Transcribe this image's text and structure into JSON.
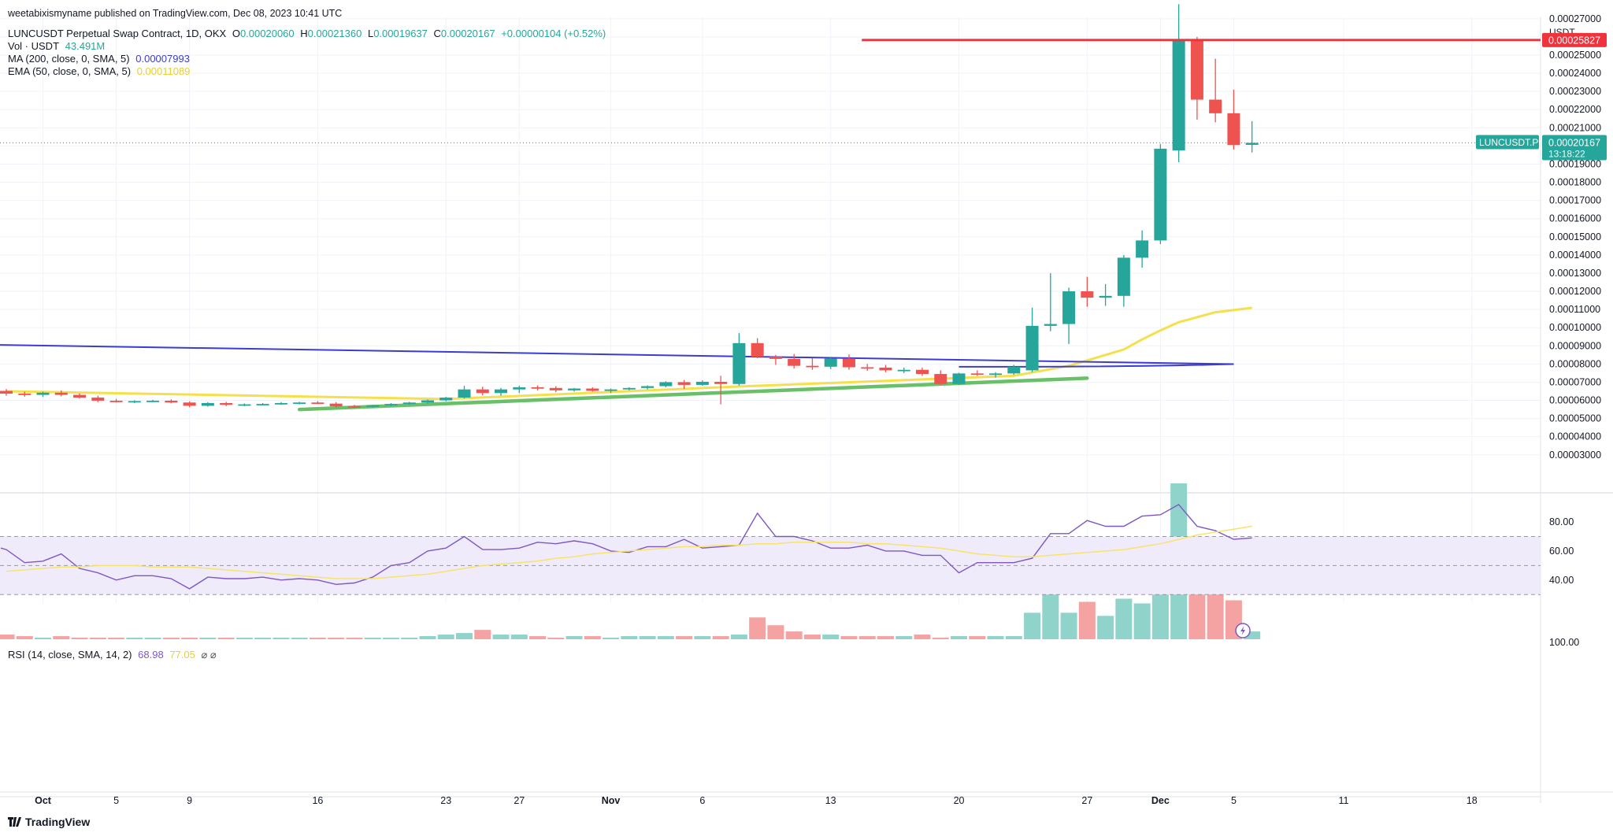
{
  "header": {
    "published": "weetabixismyname published on TradingView.com, Dec 08, 2023 10:41 UTC",
    "symbol_line": "LUNCUSDT Perpetual Swap Contract, 1D, OKX",
    "ohlc": [
      {
        "k": "O",
        "v": "0.00020060"
      },
      {
        "k": "H",
        "v": "0.00021360"
      },
      {
        "k": "L",
        "v": "0.00019637"
      },
      {
        "k": "C",
        "v": "0.00020167"
      }
    ],
    "change": "+0.00000104 (+0.52%)",
    "vol_label": "Vol · USDT",
    "vol_value": "43.491M",
    "ma_label": "MA (200, close, 0, SMA, 5)",
    "ma_value": "0.00007993",
    "ema_label": "EMA (50, close, 0, SMA, 5)",
    "ema_value": "0.00011089"
  },
  "rsi_header": {
    "label": "RSI (14, close, SMA, 14, 2)",
    "value1": "68.98",
    "value2": "77.05",
    "glyphs": "⌀ ⌀"
  },
  "price_axis": {
    "currency": "USDT",
    "ticks": [
      "0.00027000",
      "0.00025000",
      "0.00024000",
      "0.00023000",
      "0.00022000",
      "0.00021000",
      "0.00019000",
      "0.00018000",
      "0.00017000",
      "0.00016000",
      "0.00015000",
      "0.00014000",
      "0.00013000",
      "0.00012000",
      "0.00011000",
      "0.00010000",
      "0.00009000",
      "0.00008000",
      "0.00007000",
      "0.00006000",
      "0.00005000",
      "0.00004000",
      "0.00003000"
    ],
    "resistance_label": "0.00025827",
    "symbol_tag": "LUNCUSDT.P",
    "last_price_label": "0.00020167",
    "countdown": "13:18:22"
  },
  "rsi_axis": {
    "ticks": [
      "100.00",
      "80.00",
      "60.00",
      "40.00"
    ]
  },
  "time_axis": {
    "labels": [
      {
        "i": 2,
        "t": "Oct",
        "bold": true
      },
      {
        "i": 6,
        "t": "5"
      },
      {
        "i": 10,
        "t": "9"
      },
      {
        "i": 17,
        "t": "16"
      },
      {
        "i": 24,
        "t": "23"
      },
      {
        "i": 28,
        "t": "27"
      },
      {
        "i": 33,
        "t": "Nov",
        "bold": true
      },
      {
        "i": 38,
        "t": "6"
      },
      {
        "i": 45,
        "t": "13"
      },
      {
        "i": 52,
        "t": "20"
      },
      {
        "i": 59,
        "t": "27"
      },
      {
        "i": 63,
        "t": "Dec",
        "bold": true
      },
      {
        "i": 67,
        "t": "5"
      },
      {
        "i": 73,
        "t": "11"
      },
      {
        "i": 80,
        "t": "18"
      }
    ]
  },
  "colors": {
    "up": "#26a69a",
    "down": "#ef5350",
    "vol_up": "#8fd3cb",
    "vol_down": "#f5a3a2",
    "ma": "#3c3ccf",
    "ema": "#f5e04c",
    "trend": "#6abf69",
    "resistance": "#f0323c",
    "rsi": "#7e57c2",
    "rsi_ma": "#f7e36a",
    "rsi_band": "#efebfa"
  },
  "logo": "TradingView",
  "chart_data": {
    "type": "candlestick",
    "title": "LUNCUSDT Perpetual Swap Contract, 1D, OKX",
    "x_start": "2023-09-28",
    "interval": "1D",
    "ylim": [
      2e-05,
      0.000275
    ],
    "candles": [
      [
        6.52e-05,
        6.62e-05,
        6.25e-05,
        6.37e-05
      ],
      [
        6.37e-05,
        6.48e-05,
        6.2e-05,
        6.3e-05
      ],
      [
        6.3e-05,
        6.48e-05,
        6.18e-05,
        6.42e-05
      ],
      [
        6.42e-05,
        6.55e-05,
        6.22e-05,
        6.3e-05
      ],
      [
        6.3e-05,
        6.38e-05,
        6.1e-05,
        6.15e-05
      ],
      [
        6.15e-05,
        6.25e-05,
        5.9e-05,
        5.98e-05
      ],
      [
        5.98e-05,
        6.08e-05,
        5.88e-05,
        5.92e-05
      ],
      [
        5.92e-05,
        6e-05,
        5.85e-05,
        5.96e-05
      ],
      [
        5.96e-05,
        6.03e-05,
        5.9e-05,
        5.98e-05
      ],
      [
        5.98e-05,
        6.05e-05,
        5.83e-05,
        5.88e-05
      ],
      [
        5.88e-05,
        5.95e-05,
        5.62e-05,
        5.7e-05
      ],
      [
        5.7e-05,
        5.9e-05,
        5.65e-05,
        5.85e-05
      ],
      [
        5.85e-05,
        5.92e-05,
        5.68e-05,
        5.75e-05
      ],
      [
        5.75e-05,
        5.83e-05,
        5.68e-05,
        5.78e-05
      ],
      [
        5.78e-05,
        5.85e-05,
        5.72e-05,
        5.8e-05
      ],
      [
        5.8e-05,
        5.9e-05,
        5.75e-05,
        5.85e-05
      ],
      [
        5.85e-05,
        5.92e-05,
        5.78e-05,
        5.88e-05
      ],
      [
        5.88e-05,
        5.96e-05,
        5.8e-05,
        5.82e-05
      ],
      [
        5.82e-05,
        5.9e-05,
        5.6e-05,
        5.67e-05
      ],
      [
        5.67e-05,
        5.75e-05,
        5.58e-05,
        5.64e-05
      ],
      [
        5.64e-05,
        5.75e-05,
        5.6e-05,
        5.73e-05
      ],
      [
        5.73e-05,
        5.85e-05,
        5.68e-05,
        5.8e-05
      ],
      [
        5.8e-05,
        5.92e-05,
        5.75e-05,
        5.88e-05
      ],
      [
        5.88e-05,
        6.05e-05,
        5.82e-05,
        6e-05
      ],
      [
        6e-05,
        6.2e-05,
        5.95e-05,
        6.15e-05
      ],
      [
        6.15e-05,
        6.8e-05,
        6.1e-05,
        6.6e-05
      ],
      [
        6.6e-05,
        6.75e-05,
        6.28e-05,
        6.4e-05
      ],
      [
        6.4e-05,
        6.68e-05,
        6.25e-05,
        6.6e-05
      ],
      [
        6.6e-05,
        6.8e-05,
        6.4e-05,
        6.72e-05
      ],
      [
        6.72e-05,
        6.82e-05,
        6.55e-05,
        6.68e-05
      ],
      [
        6.68e-05,
        6.78e-05,
        6.45e-05,
        6.55e-05
      ],
      [
        6.55e-05,
        6.68e-05,
        6.48e-05,
        6.65e-05
      ],
      [
        6.65e-05,
        6.72e-05,
        6.48e-05,
        6.52e-05
      ],
      [
        6.52e-05,
        6.65e-05,
        6.4e-05,
        6.6e-05
      ],
      [
        6.6e-05,
        6.72e-05,
        6.55e-05,
        6.68e-05
      ],
      [
        6.68e-05,
        6.82e-05,
        6.6e-05,
        6.78e-05
      ],
      [
        6.78e-05,
        7.05e-05,
        6.72e-05,
        7e-05
      ],
      [
        7e-05,
        7.12e-05,
        6.62e-05,
        6.85e-05
      ],
      [
        6.85e-05,
        7.1e-05,
        6.8e-05,
        7.02e-05
      ],
      [
        7.02e-05,
        7.35e-05,
        5.78e-05,
        6.9e-05
      ],
      [
        6.9e-05,
        9.7e-05,
        6.8e-05,
        9.15e-05
      ],
      [
        9.15e-05,
        9.42e-05,
        8.32e-05,
        8.4e-05
      ],
      [
        8.4e-05,
        8.5e-05,
        7.95e-05,
        8.28e-05
      ],
      [
        8.28e-05,
        8.55e-05,
        7.75e-05,
        7.9e-05
      ],
      [
        7.9e-05,
        8.32e-05,
        7.68e-05,
        7.85e-05
      ],
      [
        7.85e-05,
        8.4e-05,
        7.72e-05,
        8.3e-05
      ],
      [
        8.3e-05,
        8.52e-05,
        7.68e-05,
        7.82e-05
      ],
      [
        7.82e-05,
        8e-05,
        7.62e-05,
        7.8e-05
      ],
      [
        7.8e-05,
        7.95e-05,
        7.55e-05,
        7.65e-05
      ],
      [
        7.65e-05,
        7.8e-05,
        7.5e-05,
        7.68e-05
      ],
      [
        7.68e-05,
        7.8e-05,
        7.35e-05,
        7.45e-05
      ],
      [
        7.45e-05,
        7.65e-05,
        6.85e-05,
        6.9e-05
      ],
      [
        6.9e-05,
        7.52e-05,
        6.85e-05,
        7.48e-05
      ],
      [
        7.48e-05,
        7.65e-05,
        7.35e-05,
        7.42e-05
      ],
      [
        7.42e-05,
        7.55e-05,
        7.25e-05,
        7.48e-05
      ],
      [
        7.48e-05,
        7.95e-05,
        7.4e-05,
        7.85e-05
      ],
      [
        7.65e-05,
        0.000111,
        7.55e-05,
        0.000101
      ],
      [
        0.000101,
        0.00013,
        9.8e-05,
        0.000102
      ],
      [
        0.000102,
        0.000122,
        9.1e-05,
        0.00012
      ],
      [
        0.00012,
        0.000128,
        0.0001115,
        0.0001165
      ],
      [
        0.0001165,
        0.000124,
        0.000112,
        0.0001175
      ],
      [
        0.0001175,
        0.00014,
        0.0001115,
        0.0001385
      ],
      [
        0.0001385,
        0.0001535,
        0.000133,
        0.000148
      ],
      [
        0.000148,
        0.000201,
        0.000146,
        0.0001985
      ],
      [
        0.0001975,
        0.000278,
        0.000191,
        0.0002582
      ],
      [
        0.0002582,
        0.00026,
        0.0002145,
        0.0002255
      ],
      [
        0.0002255,
        0.000248,
        0.000213,
        0.000218
      ],
      [
        0.000218,
        0.000231,
        0.000198,
        0.0002005
      ],
      [
        0.0002006,
        0.0002136,
        0.0001964,
        0.0002017
      ]
    ],
    "volume": [
      3,
      2,
      1,
      2,
      1,
      1,
      1,
      1,
      1,
      1,
      1,
      1,
      1,
      1,
      1,
      1,
      1,
      1,
      1,
      1,
      1,
      1,
      1,
      2,
      3,
      4,
      6,
      3,
      3,
      2,
      1,
      2,
      2,
      1,
      2,
      2,
      2,
      2,
      2,
      2,
      3,
      14,
      9,
      5,
      3,
      3,
      2,
      2,
      2,
      2,
      3,
      1,
      2,
      2,
      2,
      2,
      17,
      42,
      17,
      24,
      15,
      26,
      23,
      55,
      100,
      56,
      42,
      25,
      5
    ],
    "ma200": [
      [
        0,
        9.05e-05
      ],
      [
        67,
        7.993e-05
      ]
    ],
    "ema50": [
      [
        0,
        6.5e-05
      ],
      [
        24,
        6.07e-05
      ],
      [
        39,
        6.72e-05
      ],
      [
        55,
        7.35e-05
      ],
      [
        58,
        7.9e-05
      ],
      [
        61,
        8.8e-05
      ],
      [
        62,
        9.35e-05
      ],
      [
        63,
        9.85e-05
      ],
      [
        64,
        0.000103
      ],
      [
        66,
        0.0001085
      ],
      [
        68,
        0.0001109
      ]
    ],
    "trendline": [
      [
        16,
        5.5e-05
      ],
      [
        59,
        7.22e-05
      ]
    ],
    "resistance": 0.00025827,
    "rsi": [
      61,
      52,
      53,
      58,
      48,
      45,
      40,
      43,
      43,
      41,
      34,
      42,
      41,
      41,
      42,
      40,
      41,
      40,
      37,
      38,
      42,
      50,
      52,
      60,
      62,
      70,
      61,
      61,
      62,
      66,
      65,
      67,
      65,
      60,
      59,
      63,
      63,
      68,
      62,
      63,
      64,
      86,
      70,
      70,
      67,
      62,
      62,
      64,
      60,
      60,
      57,
      57,
      45,
      52,
      52,
      52,
      55,
      72,
      72,
      81,
      77,
      77,
      84,
      85,
      92,
      77,
      74,
      68,
      69
    ],
    "rsi_ma": [
      46,
      47,
      48,
      49,
      49,
      50,
      50,
      50,
      49,
      49,
      49,
      48,
      47,
      46,
      45,
      44,
      43,
      42,
      41,
      41,
      41,
      42,
      43,
      44,
      46,
      48,
      50,
      51,
      52,
      53,
      55,
      56,
      58,
      59,
      60,
      61,
      62,
      63,
      63,
      64,
      64,
      65,
      65,
      66,
      66,
      66,
      66,
      65,
      65,
      64,
      63,
      62,
      60,
      58,
      57,
      56,
      56,
      57,
      58,
      59,
      60,
      61,
      63,
      65,
      68,
      71,
      73,
      75,
      77.05
    ],
    "rsi_ylim": [
      20,
      100
    ],
    "rsi_levels": [
      70,
      50,
      30
    ]
  }
}
